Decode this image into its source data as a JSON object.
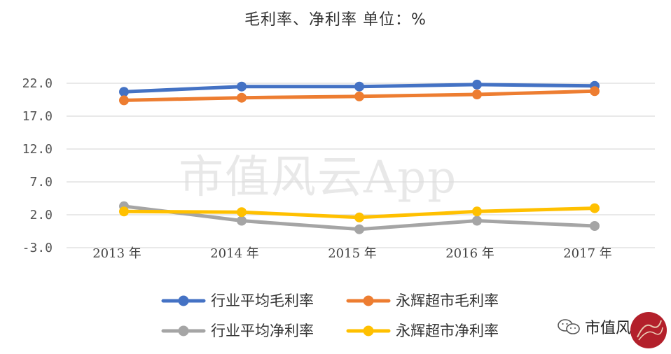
{
  "header": {
    "title": "毛利率、净利率    单位：%"
  },
  "watermark": {
    "text": "市值风云App"
  },
  "brand": {
    "label": "市值风云",
    "icon": "chat-bubbles-icon",
    "logo": "red-circle-logo"
  },
  "chart_data": {
    "type": "line",
    "title": "毛利率、净利率    单位：%",
    "categories": [
      "2013 年",
      "2014 年",
      "2015 年",
      "2016 年",
      "2017 年"
    ],
    "y_ticks": [
      "22.0",
      "17.0",
      "12.0",
      "7.0",
      "2.0",
      "-3.0"
    ],
    "ylim": [
      -3,
      22
    ],
    "grid": true,
    "legend_position": "bottom",
    "series": [
      {
        "name": "行业平均毛利率",
        "color": "#4472C4",
        "values": [
          20.7,
          21.5,
          21.5,
          21.8,
          21.6
        ]
      },
      {
        "name": "永辉超市毛利率",
        "color": "#ED7D31",
        "values": [
          19.4,
          19.8,
          20.0,
          20.3,
          20.8
        ]
      },
      {
        "name": "行业平均净利率",
        "color": "#A5A5A5",
        "values": [
          3.3,
          1.1,
          -0.2,
          1.1,
          0.3
        ]
      },
      {
        "name": "永辉超市净利率",
        "color": "#FFC000",
        "values": [
          2.5,
          2.4,
          1.6,
          2.5,
          3.0
        ]
      }
    ]
  }
}
